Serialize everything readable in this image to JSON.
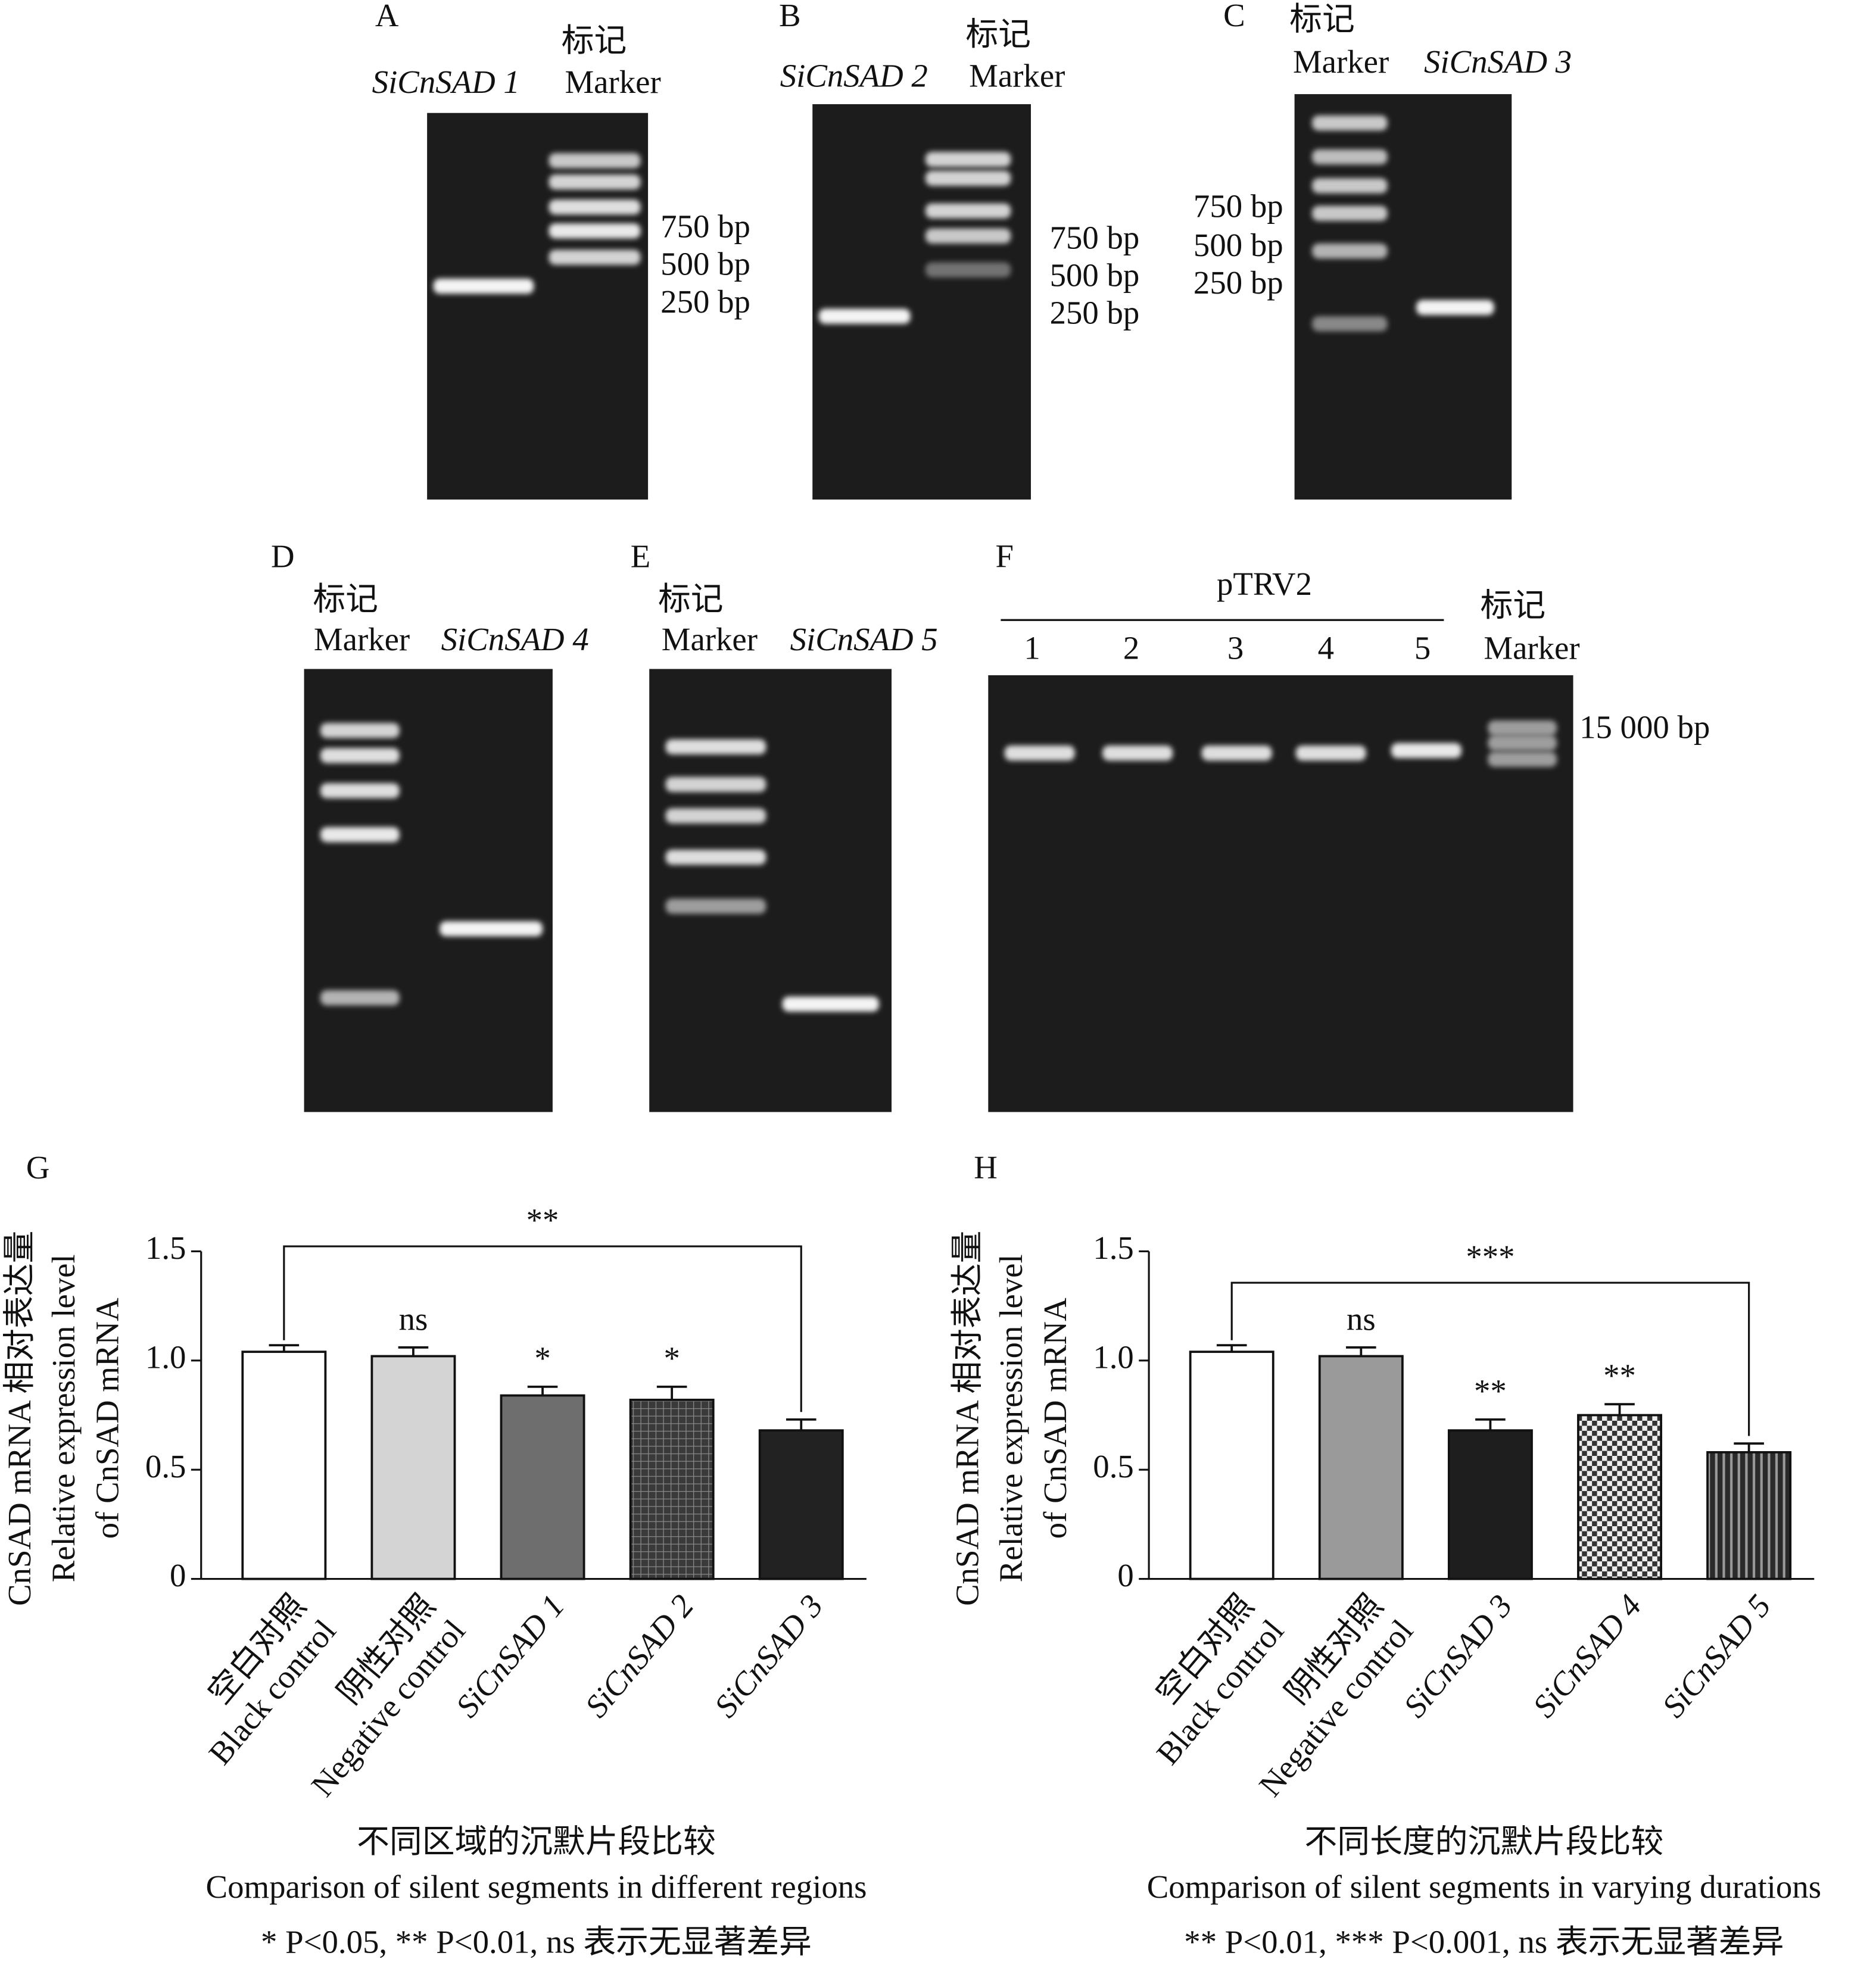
{
  "gels": [
    {
      "label": "A",
      "marker_cn": "标记",
      "lanes": [
        "SiCnSAD 1",
        "Marker"
      ],
      "sizes": [
        "750 bp",
        "500 bp",
        "250 bp"
      ]
    },
    {
      "label": "B",
      "marker_cn": "标记",
      "lanes": [
        "SiCnSAD 2",
        "Marker"
      ],
      "sizes": [
        "750 bp",
        "500 bp",
        "250 bp"
      ]
    },
    {
      "label": "C",
      "marker_cn": "标记",
      "lanes": [
        "Marker",
        "SiCnSAD 3"
      ],
      "sizes": [
        "750 bp",
        "500 bp",
        "250 bp"
      ]
    },
    {
      "label": "D",
      "marker_cn": "标记",
      "lanes": [
        "Marker",
        "SiCnSAD 4"
      ]
    },
    {
      "label": "E",
      "marker_cn": "标记",
      "lanes": [
        "Marker",
        "SiCnSAD 5"
      ]
    },
    {
      "label": "F",
      "marker_cn": "标记",
      "group": "pTRV2",
      "lanes": [
        "1",
        "2",
        "3",
        "4",
        "5",
        "Marker"
      ],
      "sizes": [
        "15 000 bp"
      ]
    }
  ],
  "chart_data": [
    {
      "type": "bar",
      "panel": "G",
      "categories": [
        [
          "空白对照",
          "Black control"
        ],
        [
          "阴性对照",
          "Negative control"
        ],
        [
          "SiCnSAD 1"
        ],
        [
          "SiCnSAD 2"
        ],
        [
          "SiCnSAD 3"
        ]
      ],
      "values": [
        1.04,
        1.02,
        0.84,
        0.82,
        0.68
      ],
      "errors": [
        0.03,
        0.04,
        0.04,
        0.06,
        0.05
      ],
      "significance": [
        null,
        "ns",
        "*",
        "*",
        null
      ],
      "bracket_label": "**",
      "colors": [
        "#ffffff",
        "#d4d4d4",
        "#6e6e6e",
        "#4a4a4a",
        "#222222"
      ],
      "hatches": [
        null,
        null,
        null,
        "grid",
        null
      ],
      "ylim": [
        0,
        1.5
      ],
      "yticks": [
        0,
        0.5,
        {
          "value": 1,
          "label": "1.0"
        },
        1.5
      ],
      "ylabel": [
        "CnSAD mRNA 相对表达量",
        "Relative expression level",
        "of CnSAD mRNA"
      ],
      "xlabel": [
        "不同区域的沉默片段比较",
        "Comparison of silent segments in different regions"
      ],
      "footnote": "* P<0.05, ** P<0.01, ns 表示无显著差异"
    },
    {
      "type": "bar",
      "panel": "H",
      "categories": [
        [
          "空白对照",
          "Black control"
        ],
        [
          "阴性对照",
          "Negative control"
        ],
        [
          "SiCnSAD 3"
        ],
        [
          "SiCnSAD 4"
        ],
        [
          "SiCnSAD 5"
        ]
      ],
      "values": [
        1.04,
        1.02,
        0.68,
        0.75,
        0.58
      ],
      "errors": [
        0.03,
        0.04,
        0.05,
        0.05,
        0.04
      ],
      "significance": [
        null,
        "ns",
        "**",
        "**",
        null
      ],
      "bracket_label": "***",
      "colors": [
        "#ffffff",
        "#9a9a9a",
        "#1e1e1e",
        "#555555",
        "#3a3a3a"
      ],
      "hatches": [
        null,
        null,
        null,
        "checker",
        "stripes"
      ],
      "ylim": [
        0,
        1.5
      ],
      "yticks": [
        0,
        0.5,
        {
          "value": 1,
          "label": "1.0"
        },
        1.5
      ],
      "ylabel": [
        "CnSAD mRNA 相对表达量",
        "Relative expression level",
        "of CnSAD mRNA"
      ],
      "xlabel": [
        "不同长度的沉默片段比较",
        "Comparison of silent segments in varying durations"
      ],
      "footnote": "** P<0.01, *** P<0.001, ns 表示无显著差异"
    }
  ]
}
